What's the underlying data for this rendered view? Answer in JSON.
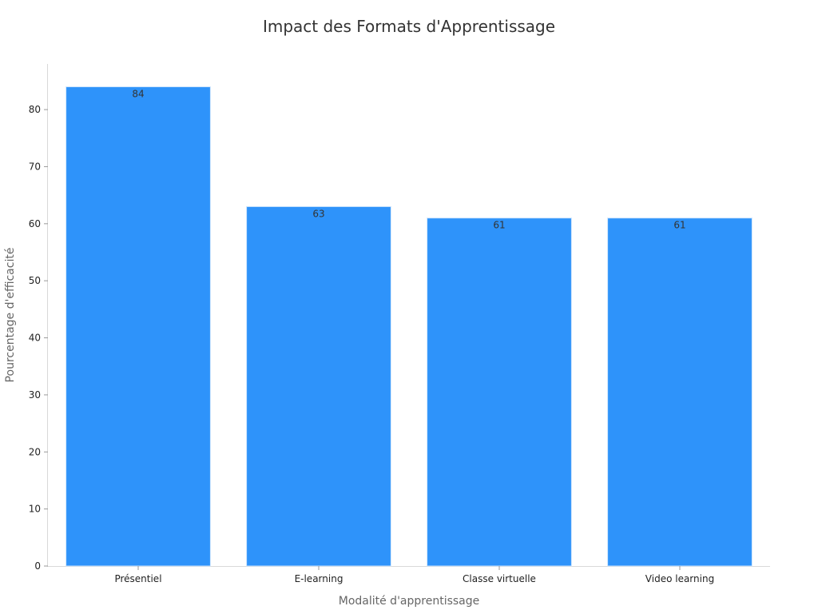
{
  "chart_data": {
    "type": "bar",
    "title": "Impact des Formats d'Apprentissage",
    "xlabel": "Modalité d'apprentissage",
    "ylabel": "Pourcentage d'efficacité",
    "categories": [
      "Présentiel",
      "E-learning",
      "Classe virtuelle",
      "Video learning"
    ],
    "values": [
      84,
      63,
      61,
      61
    ],
    "ylim": [
      0,
      88
    ],
    "yticks": [
      0,
      10,
      20,
      30,
      40,
      50,
      60,
      70,
      80
    ],
    "bar_color": "#2e93fa",
    "grid": false,
    "legend": "none"
  }
}
